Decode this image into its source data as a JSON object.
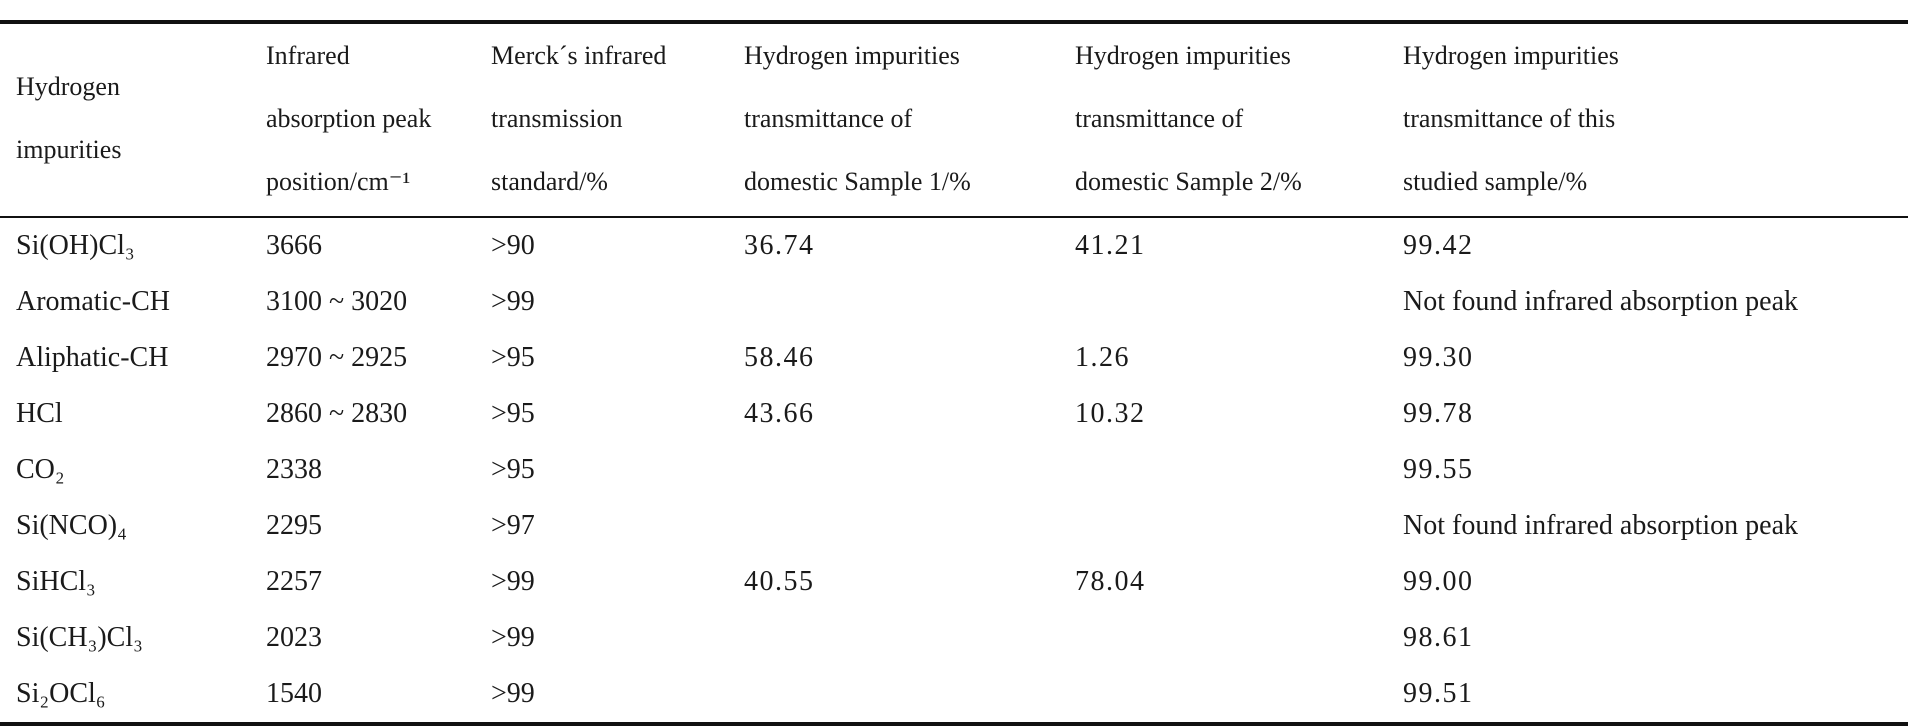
{
  "table": {
    "headers": [
      [
        "Hydrogen",
        "impurities"
      ],
      [
        "Infrared",
        "absorption peak",
        "position/cm⁻¹"
      ],
      [
        "Merck´s infrared",
        "transmission",
        "standard/%"
      ],
      [
        "Hydrogen impurities",
        "transmittance of",
        "domestic Sample 1/%"
      ],
      [
        "Hydrogen impurities",
        "transmittance of",
        "domestic Sample 2/%"
      ],
      [
        "Hydrogen impurities",
        "transmittance of this",
        "studied sample/%"
      ]
    ],
    "rows": [
      {
        "impurity": "Si(OH)Cl₃",
        "peak": "3666",
        "merck": ">90",
        "sample1": "36.74",
        "sample2": "41.21",
        "studied": "99.42"
      },
      {
        "impurity": "Aromatic-CH",
        "peak": "3100 ~ 3020",
        "merck": ">99",
        "sample1": "",
        "sample2": "",
        "studied": "Not found infrared absorption peak"
      },
      {
        "impurity": "Aliphatic-CH",
        "peak": "2970 ~ 2925",
        "merck": ">95",
        "sample1": "58.46",
        "sample2": "1.26",
        "studied": "99.30"
      },
      {
        "impurity": "HCl",
        "peak": "2860 ~ 2830",
        "merck": ">95",
        "sample1": "43.66",
        "sample2": "10.32",
        "studied": "99.78"
      },
      {
        "impurity": "CO₂",
        "peak": "2338",
        "merck": ">95",
        "sample1": "",
        "sample2": "",
        "studied": "99.55"
      },
      {
        "impurity": "Si(NCO)₄",
        "peak": "2295",
        "merck": ">97",
        "sample1": "",
        "sample2": "",
        "studied": "Not found infrared absorption peak"
      },
      {
        "impurity": "SiHCl₃",
        "peak": "2257",
        "merck": ">99",
        "sample1": "40.55",
        "sample2": "78.04",
        "studied": "99.00"
      },
      {
        "impurity": "Si(CH₃)Cl₃",
        "peak": "2023",
        "merck": ">99",
        "sample1": "",
        "sample2": "",
        "studied": "98.61"
      },
      {
        "impurity": "Si₂OCl₆",
        "peak": "1540",
        "merck": ">99",
        "sample1": "",
        "sample2": "",
        "studied": "99.51"
      }
    ]
  }
}
